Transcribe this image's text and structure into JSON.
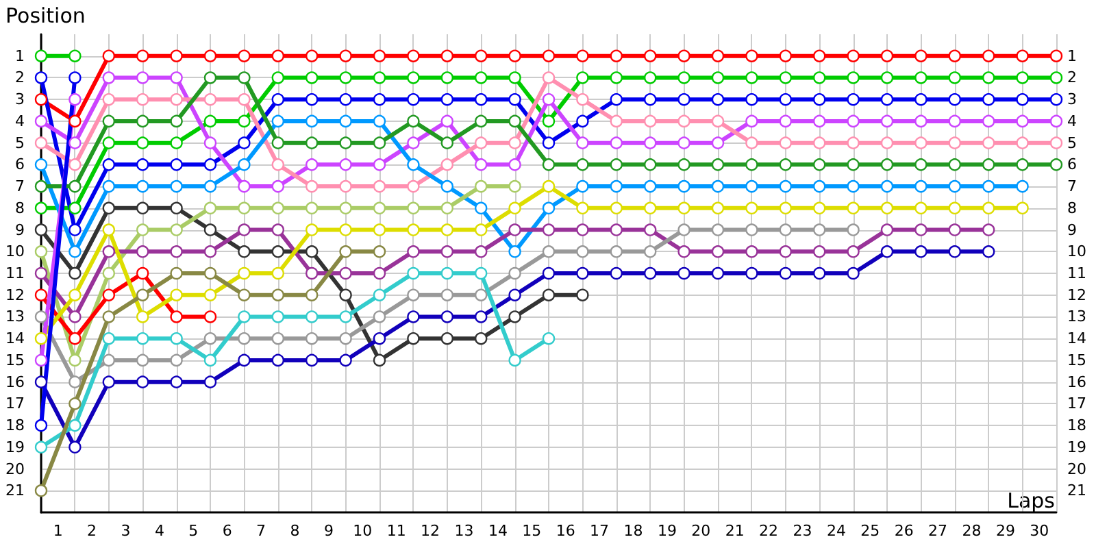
{
  "chart_data": {
    "type": "line",
    "ylabel": "Position",
    "xlabel": "Laps",
    "marker": "circle",
    "line_style": "solid",
    "grid": true,
    "x": [
      0,
      1,
      2,
      3,
      4,
      5,
      6,
      7,
      8,
      9,
      10,
      11,
      12,
      13,
      14,
      15,
      16,
      17,
      18,
      19,
      20,
      21,
      22,
      23,
      24,
      25,
      26,
      27,
      28,
      29,
      30
    ],
    "xlim": [
      0,
      30
    ],
    "xticks": [
      {
        "value": 0.5,
        "label": "1"
      },
      {
        "value": 1.5,
        "label": "2"
      },
      {
        "value": 2.5,
        "label": "3"
      },
      {
        "value": 3.5,
        "label": "4"
      },
      {
        "value": 4.5,
        "label": "5"
      },
      {
        "value": 5.5,
        "label": "6"
      },
      {
        "value": 6.5,
        "label": "7"
      },
      {
        "value": 7.5,
        "label": "8"
      },
      {
        "value": 8.5,
        "label": "9"
      },
      {
        "value": 9.5,
        "label": "10"
      },
      {
        "value": 10.5,
        "label": "11"
      },
      {
        "value": 11.5,
        "label": "12"
      },
      {
        "value": 12.5,
        "label": "13"
      },
      {
        "value": 13.5,
        "label": "14"
      },
      {
        "value": 14.5,
        "label": "15"
      },
      {
        "value": 15.5,
        "label": "16"
      },
      {
        "value": 16.5,
        "label": "17"
      },
      {
        "value": 17.5,
        "label": "18"
      },
      {
        "value": 18.5,
        "label": "19"
      },
      {
        "value": 19.5,
        "label": "20"
      },
      {
        "value": 20.5,
        "label": "21"
      },
      {
        "value": 21.5,
        "label": "22"
      },
      {
        "value": 22.5,
        "label": "23"
      },
      {
        "value": 23.5,
        "label": "24"
      },
      {
        "value": 24.5,
        "label": "25"
      },
      {
        "value": 25.5,
        "label": "26"
      },
      {
        "value": 26.5,
        "label": "27"
      },
      {
        "value": 27.5,
        "label": "28"
      },
      {
        "value": 28.5,
        "label": "29"
      },
      {
        "value": 29.5,
        "label": "30"
      }
    ],
    "ylim": [
      22,
      0
    ],
    "yticks": [
      1,
      2,
      3,
      4,
      5,
      6,
      7,
      8,
      9,
      10,
      11,
      12,
      13,
      14,
      15,
      16,
      17,
      18,
      19,
      20,
      21
    ],
    "y2lim": [
      22,
      0
    ],
    "y2ticks": [
      1,
      2,
      3,
      4,
      5,
      6,
      7,
      8,
      9,
      10,
      11,
      12,
      13,
      14,
      15,
      16,
      17,
      18,
      19,
      20,
      21
    ],
    "series": [
      {
        "color": "#ff0000",
        "values": [
          3,
          4,
          1,
          1,
          1,
          1,
          1,
          1,
          1,
          1,
          1,
          1,
          1,
          1,
          1,
          1,
          1,
          1,
          1,
          1,
          1,
          1,
          1,
          1,
          1,
          1,
          1,
          1,
          1,
          1,
          1
        ]
      },
      {
        "color": "#00cc00",
        "values": [
          8,
          8,
          5,
          5,
          5,
          4,
          4,
          2,
          2,
          2,
          2,
          2,
          2,
          2,
          2,
          4,
          2,
          2,
          2,
          2,
          2,
          2,
          2,
          2,
          2,
          2,
          2,
          2,
          2,
          2,
          2
        ]
      },
      {
        "color": "#0000ee",
        "values": [
          2,
          9,
          6,
          6,
          6,
          6,
          5,
          3,
          3,
          3,
          3,
          3,
          3,
          3,
          3,
          5,
          4,
          3,
          3,
          3,
          3,
          3,
          3,
          3,
          3,
          3,
          3,
          3,
          3,
          3,
          3
        ]
      },
      {
        "color": "#cc44ff",
        "values": [
          4,
          5,
          2,
          2,
          2,
          5,
          7,
          7,
          6,
          6,
          6,
          5,
          4,
          6,
          6,
          3,
          5,
          5,
          5,
          5,
          5,
          4,
          4,
          4,
          4,
          4,
          4,
          4,
          4,
          4,
          4
        ]
      },
      {
        "color": "#ff8fb0",
        "values": [
          5,
          6,
          3,
          3,
          3,
          3,
          3,
          6,
          7,
          7,
          7,
          7,
          6,
          5,
          5,
          2,
          3,
          4,
          4,
          4,
          4,
          5,
          5,
          5,
          5,
          5,
          5,
          5,
          5,
          5,
          5
        ]
      },
      {
        "color": "#0099ff",
        "values": [
          6,
          10,
          7,
          7,
          7,
          7,
          6,
          4,
          4,
          4,
          4,
          6,
          7,
          8,
          10,
          8,
          7,
          7,
          7,
          7,
          7,
          7,
          7,
          7,
          7,
          7,
          7,
          7,
          7,
          7,
          null
        ]
      },
      {
        "color": "#229922",
        "values": [
          7,
          7,
          4,
          4,
          4,
          2,
          2,
          5,
          5,
          5,
          5,
          4,
          5,
          4,
          4,
          6,
          6,
          6,
          6,
          6,
          6,
          6,
          6,
          6,
          6,
          6,
          6,
          6,
          6,
          6,
          6
        ]
      },
      {
        "color": "#00cc00",
        "values": [
          1,
          1,
          null,
          null,
          null,
          null,
          null,
          null,
          null,
          null,
          null,
          null,
          null,
          null,
          null,
          null,
          null,
          null,
          null,
          null,
          null,
          null,
          null,
          null,
          null,
          null,
          null,
          null,
          null,
          null,
          null
        ]
      },
      {
        "color": "#333333",
        "values": [
          9,
          11,
          8,
          8,
          8,
          9,
          10,
          10,
          10,
          12,
          15,
          14,
          14,
          14,
          13,
          12,
          12,
          null,
          null,
          null,
          null,
          null,
          null,
          null,
          null,
          null,
          null,
          null,
          null,
          null,
          null
        ]
      },
      {
        "color": "#aacc66",
        "values": [
          10,
          15,
          11,
          9,
          9,
          8,
          8,
          8,
          8,
          8,
          8,
          8,
          8,
          7,
          7,
          null,
          null,
          null,
          null,
          null,
          null,
          null,
          null,
          null,
          null,
          null,
          null,
          null,
          null,
          null,
          null
        ]
      },
      {
        "color": "#993399",
        "values": [
          11,
          13,
          10,
          10,
          10,
          10,
          9,
          9,
          11,
          11,
          11,
          10,
          10,
          10,
          9,
          9,
          9,
          9,
          9,
          10,
          10,
          10,
          10,
          10,
          10,
          9,
          9,
          9,
          9,
          null,
          null
        ]
      },
      {
        "color": "#ff0000",
        "values": [
          12,
          14,
          12,
          11,
          13,
          13,
          null,
          null,
          null,
          null,
          null,
          null,
          null,
          null,
          null,
          null,
          null,
          null,
          null,
          null,
          null,
          null,
          null,
          null,
          null,
          null,
          null,
          null,
          null,
          null,
          null
        ]
      },
      {
        "color": "#999999",
        "values": [
          13,
          16,
          15,
          15,
          15,
          14,
          14,
          14,
          14,
          14,
          13,
          12,
          12,
          12,
          11,
          10,
          10,
          10,
          10,
          9,
          9,
          9,
          9,
          9,
          9,
          null,
          null,
          null,
          null,
          null,
          null
        ]
      },
      {
        "color": "#dddd00",
        "values": [
          14,
          12,
          9,
          13,
          12,
          12,
          11,
          11,
          9,
          9,
          9,
          9,
          9,
          9,
          8,
          7,
          8,
          8,
          8,
          8,
          8,
          8,
          8,
          8,
          8,
          8,
          8,
          8,
          8,
          8,
          null
        ]
      },
      {
        "color": "#cc44ff",
        "values": [
          15,
          3,
          null,
          null,
          null,
          null,
          null,
          null,
          null,
          null,
          null,
          null,
          null,
          null,
          null,
          null,
          null,
          null,
          null,
          null,
          null,
          null,
          null,
          null,
          null,
          null,
          null,
          null,
          null,
          null,
          null
        ]
      },
      {
        "color": "#1100bb",
        "values": [
          16,
          19,
          16,
          16,
          16,
          16,
          15,
          15,
          15,
          15,
          14,
          13,
          13,
          13,
          12,
          11,
          11,
          11,
          11,
          11,
          11,
          11,
          11,
          11,
          11,
          10,
          10,
          10,
          10,
          null,
          null
        ]
      },
      {
        "color": "#0000ee",
        "values": [
          18,
          2,
          null,
          null,
          null,
          null,
          null,
          null,
          null,
          null,
          null,
          null,
          null,
          null,
          null,
          null,
          null,
          null,
          null,
          null,
          null,
          null,
          null,
          null,
          null,
          null,
          null,
          null,
          null,
          null,
          null
        ]
      },
      {
        "color": "#33cccc",
        "values": [
          19,
          18,
          14,
          14,
          14,
          15,
          13,
          13,
          13,
          13,
          12,
          11,
          11,
          11,
          15,
          14,
          null,
          null,
          null,
          null,
          null,
          null,
          null,
          null,
          null,
          null,
          null,
          null,
          null,
          null,
          null
        ]
      },
      {
        "color": "#888844",
        "values": [
          21,
          17,
          13,
          12,
          11,
          11,
          12,
          12,
          12,
          10,
          10,
          null,
          null,
          null,
          null,
          null,
          null,
          null,
          null,
          null,
          null,
          null,
          null,
          null,
          null,
          null,
          null,
          null,
          null,
          null,
          null
        ]
      }
    ]
  }
}
